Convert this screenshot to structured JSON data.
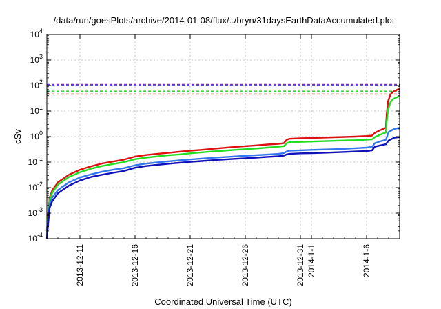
{
  "chart_data": {
    "type": "line",
    "title": "/data/run/goesPlots/archive/2014-01-08/flux/../bryn/31daysEarthDataAccumulated.plot",
    "xlabel": "Coordinated Universal Time (UTC)",
    "ylabel": "cSv",
    "yscale": "log",
    "ylim": [
      0.0001,
      10000
    ],
    "xlim": [
      "2013-12-08",
      "2014-01-09"
    ],
    "y_ticks": [
      {
        "value": 0.0001,
        "base": "10",
        "exp": "-4"
      },
      {
        "value": 0.001,
        "base": "10",
        "exp": "-3"
      },
      {
        "value": 0.01,
        "base": "10",
        "exp": "-2"
      },
      {
        "value": 0.1,
        "base": "10",
        "exp": "-1"
      },
      {
        "value": 1,
        "base": "10",
        "exp": "0"
      },
      {
        "value": 10,
        "base": "10",
        "exp": "1"
      },
      {
        "value": 100,
        "base": "10",
        "exp": "2"
      },
      {
        "value": 1000,
        "base": "10",
        "exp": "3"
      },
      {
        "value": 10000,
        "base": "10",
        "exp": "4"
      }
    ],
    "x_ticks": [
      {
        "date": "2013-12-11",
        "label": "2013-12-11"
      },
      {
        "date": "2013-12-16",
        "label": "2013-12-16"
      },
      {
        "date": "2013-12-21",
        "label": "2013-12-21"
      },
      {
        "date": "2013-12-26",
        "label": "2013-12-26"
      },
      {
        "date": "2013-12-31",
        "label": "2013-12-31"
      },
      {
        "date": "2014-01-01",
        "label": "2014-1-1"
      },
      {
        "date": "2014-01-06",
        "label": "2014-1-6"
      }
    ],
    "grid": true,
    "legend": "none",
    "thresholds": [
      {
        "value": 110,
        "color": "#7733cc"
      },
      {
        "value": 100,
        "color": "#2222dd"
      },
      {
        "value": 60,
        "color": "#22cc22"
      },
      {
        "value": 46,
        "color": "#dd1111"
      }
    ],
    "series": [
      {
        "color": "#dd1111",
        "points": [
          [
            "2013-12-08 00:00",
            0.0002
          ],
          [
            "2013-12-08 06:00",
            0.004
          ],
          [
            "2013-12-08 12:00",
            0.008
          ],
          [
            "2013-12-09 00:00",
            0.016
          ],
          [
            "2013-12-10 00:00",
            0.032
          ],
          [
            "2013-12-11 00:00",
            0.05
          ],
          [
            "2013-12-12 00:00",
            0.068
          ],
          [
            "2013-12-13 00:00",
            0.088
          ],
          [
            "2013-12-14 00:00",
            0.105
          ],
          [
            "2013-12-15 00:00",
            0.125
          ],
          [
            "2013-12-16 00:00",
            0.165
          ],
          [
            "2013-12-17 00:00",
            0.19
          ],
          [
            "2013-12-18 00:00",
            0.21
          ],
          [
            "2013-12-19 00:00",
            0.23
          ],
          [
            "2013-12-20 00:00",
            0.255
          ],
          [
            "2013-12-21 00:00",
            0.28
          ],
          [
            "2013-12-22 00:00",
            0.3
          ],
          [
            "2013-12-23 00:00",
            0.33
          ],
          [
            "2013-12-24 00:00",
            0.36
          ],
          [
            "2013-12-25 00:00",
            0.39
          ],
          [
            "2013-12-26 00:00",
            0.42
          ],
          [
            "2013-12-27 00:00",
            0.45
          ],
          [
            "2013-12-28 00:00",
            0.49
          ],
          [
            "2013-12-29 00:00",
            0.52
          ],
          [
            "2013-12-29 12:00",
            0.55
          ],
          [
            "2013-12-29 18:00",
            0.75
          ],
          [
            "2013-12-30 00:00",
            0.82
          ],
          [
            "2013-12-31 00:00",
            0.86
          ],
          [
            "2014-01-01 00:00",
            0.88
          ],
          [
            "2014-01-02 00:00",
            0.91
          ],
          [
            "2014-01-03 00:00",
            0.94
          ],
          [
            "2014-01-04 00:00",
            0.97
          ],
          [
            "2014-01-05 00:00",
            1.0
          ],
          [
            "2014-01-06 00:00",
            1.05
          ],
          [
            "2014-01-06 12:00",
            1.1
          ],
          [
            "2014-01-06 18:00",
            1.4
          ],
          [
            "2014-01-07 06:00",
            1.8
          ],
          [
            "2014-01-07 18:00",
            2.2
          ],
          [
            "2014-01-07 20:00",
            8.0
          ],
          [
            "2014-01-07 23:00",
            25
          ],
          [
            "2014-01-08 04:00",
            45
          ],
          [
            "2014-01-08 10:00",
            58
          ],
          [
            "2014-01-08 20:00",
            70
          ],
          [
            "2014-01-09 00:00",
            75
          ]
        ]
      },
      {
        "color": "#22dd22",
        "points": [
          [
            "2013-12-08 00:00",
            0.00018
          ],
          [
            "2013-12-08 06:00",
            0.0033
          ],
          [
            "2013-12-08 12:00",
            0.0065
          ],
          [
            "2013-12-09 00:00",
            0.013
          ],
          [
            "2013-12-10 00:00",
            0.026
          ],
          [
            "2013-12-11 00:00",
            0.04
          ],
          [
            "2013-12-12 00:00",
            0.055
          ],
          [
            "2013-12-13 00:00",
            0.07
          ],
          [
            "2013-12-14 00:00",
            0.084
          ],
          [
            "2013-12-15 00:00",
            0.1
          ],
          [
            "2013-12-16 00:00",
            0.13
          ],
          [
            "2013-12-17 00:00",
            0.15
          ],
          [
            "2013-12-18 00:00",
            0.168
          ],
          [
            "2013-12-19 00:00",
            0.185
          ],
          [
            "2013-12-20 00:00",
            0.2
          ],
          [
            "2013-12-21 00:00",
            0.22
          ],
          [
            "2013-12-22 00:00",
            0.24
          ],
          [
            "2013-12-23 00:00",
            0.26
          ],
          [
            "2013-12-24 00:00",
            0.28
          ],
          [
            "2013-12-25 00:00",
            0.3
          ],
          [
            "2013-12-26 00:00",
            0.32
          ],
          [
            "2013-12-27 00:00",
            0.34
          ],
          [
            "2013-12-28 00:00",
            0.37
          ],
          [
            "2013-12-29 00:00",
            0.4
          ],
          [
            "2013-12-29 12:00",
            0.42
          ],
          [
            "2013-12-29 18:00",
            0.55
          ],
          [
            "2013-12-30 00:00",
            0.6
          ],
          [
            "2013-12-31 00:00",
            0.62
          ],
          [
            "2014-01-01 00:00",
            0.64
          ],
          [
            "2014-01-02 00:00",
            0.66
          ],
          [
            "2014-01-03 00:00",
            0.68
          ],
          [
            "2014-01-04 00:00",
            0.7
          ],
          [
            "2014-01-05 00:00",
            0.72
          ],
          [
            "2014-01-06 00:00",
            0.75
          ],
          [
            "2014-01-06 12:00",
            0.78
          ],
          [
            "2014-01-06 18:00",
            0.95
          ],
          [
            "2014-01-07 06:00",
            1.2
          ],
          [
            "2014-01-07 18:00",
            1.45
          ],
          [
            "2014-01-07 20:00",
            4.0
          ],
          [
            "2014-01-07 23:00",
            12
          ],
          [
            "2014-01-08 04:00",
            22
          ],
          [
            "2014-01-08 10:00",
            30
          ],
          [
            "2014-01-08 20:00",
            36
          ],
          [
            "2014-01-09 00:00",
            38
          ]
        ]
      },
      {
        "color": "#3377ee",
        "points": [
          [
            "2013-12-08 00:00",
            0.00013
          ],
          [
            "2013-12-08 06:00",
            0.0022
          ],
          [
            "2013-12-08 12:00",
            0.0042
          ],
          [
            "2013-12-09 00:00",
            0.008
          ],
          [
            "2013-12-10 00:00",
            0.016
          ],
          [
            "2013-12-11 00:00",
            0.025
          ],
          [
            "2013-12-12 00:00",
            0.033
          ],
          [
            "2013-12-13 00:00",
            0.042
          ],
          [
            "2013-12-14 00:00",
            0.05
          ],
          [
            "2013-12-15 00:00",
            0.058
          ],
          [
            "2013-12-16 00:00",
            0.075
          ],
          [
            "2013-12-17 00:00",
            0.087
          ],
          [
            "2013-12-18 00:00",
            0.097
          ],
          [
            "2013-12-19 00:00",
            0.107
          ],
          [
            "2013-12-20 00:00",
            0.117
          ],
          [
            "2013-12-21 00:00",
            0.127
          ],
          [
            "2013-12-22 00:00",
            0.137
          ],
          [
            "2013-12-23 00:00",
            0.147
          ],
          [
            "2013-12-24 00:00",
            0.157
          ],
          [
            "2013-12-25 00:00",
            0.167
          ],
          [
            "2013-12-26 00:00",
            0.177
          ],
          [
            "2013-12-27 00:00",
            0.187
          ],
          [
            "2013-12-28 00:00",
            0.197
          ],
          [
            "2013-12-29 00:00",
            0.21
          ],
          [
            "2013-12-29 12:00",
            0.225
          ],
          [
            "2013-12-29 18:00",
            0.26
          ],
          [
            "2013-12-30 00:00",
            0.28
          ],
          [
            "2013-12-31 00:00",
            0.29
          ],
          [
            "2014-01-01 00:00",
            0.3
          ],
          [
            "2014-01-02 00:00",
            0.31
          ],
          [
            "2014-01-03 00:00",
            0.32
          ],
          [
            "2014-01-04 00:00",
            0.33
          ],
          [
            "2014-01-05 00:00",
            0.35
          ],
          [
            "2014-01-06 00:00",
            0.37
          ],
          [
            "2014-01-06 12:00",
            0.39
          ],
          [
            "2014-01-06 18:00",
            0.55
          ],
          [
            "2014-01-07 06:00",
            0.65
          ],
          [
            "2014-01-07 18:00",
            0.75
          ],
          [
            "2014-01-08 00:00",
            1.5
          ],
          [
            "2014-01-08 12:00",
            2.0
          ],
          [
            "2014-01-09 00:00",
            2.2
          ]
        ]
      },
      {
        "color": "#1111bb",
        "points": [
          [
            "2013-12-08 00:00",
            0.0001
          ],
          [
            "2013-12-08 06:00",
            0.0016
          ],
          [
            "2013-12-08 12:00",
            0.003
          ],
          [
            "2013-12-09 00:00",
            0.006
          ],
          [
            "2013-12-10 00:00",
            0.012
          ],
          [
            "2013-12-11 00:00",
            0.019
          ],
          [
            "2013-12-12 00:00",
            0.026
          ],
          [
            "2013-12-13 00:00",
            0.032
          ],
          [
            "2013-12-14 00:00",
            0.038
          ],
          [
            "2013-12-15 00:00",
            0.045
          ],
          [
            "2013-12-16 00:00",
            0.06
          ],
          [
            "2013-12-17 00:00",
            0.07
          ],
          [
            "2013-12-18 00:00",
            0.078
          ],
          [
            "2013-12-19 00:00",
            0.086
          ],
          [
            "2013-12-20 00:00",
            0.094
          ],
          [
            "2013-12-21 00:00",
            0.102
          ],
          [
            "2013-12-22 00:00",
            0.11
          ],
          [
            "2013-12-23 00:00",
            0.118
          ],
          [
            "2013-12-24 00:00",
            0.126
          ],
          [
            "2013-12-25 00:00",
            0.134
          ],
          [
            "2013-12-26 00:00",
            0.142
          ],
          [
            "2013-12-27 00:00",
            0.15
          ],
          [
            "2013-12-28 00:00",
            0.16
          ],
          [
            "2013-12-29 00:00",
            0.17
          ],
          [
            "2013-12-29 12:00",
            0.18
          ],
          [
            "2013-12-29 18:00",
            0.2
          ],
          [
            "2013-12-30 00:00",
            0.21
          ],
          [
            "2013-12-31 00:00",
            0.22
          ],
          [
            "2014-01-01 00:00",
            0.225
          ],
          [
            "2014-01-02 00:00",
            0.23
          ],
          [
            "2014-01-03 00:00",
            0.24
          ],
          [
            "2014-01-04 00:00",
            0.25
          ],
          [
            "2014-01-05 00:00",
            0.26
          ],
          [
            "2014-01-06 00:00",
            0.27
          ],
          [
            "2014-01-06 12:00",
            0.29
          ],
          [
            "2014-01-06 18:00",
            0.4
          ],
          [
            "2014-01-07 06:00",
            0.45
          ],
          [
            "2014-01-07 18:00",
            0.5
          ],
          [
            "2014-01-08 00:00",
            0.7
          ],
          [
            "2014-01-08 12:00",
            0.9
          ],
          [
            "2014-01-09 00:00",
            0.95
          ]
        ]
      }
    ]
  }
}
